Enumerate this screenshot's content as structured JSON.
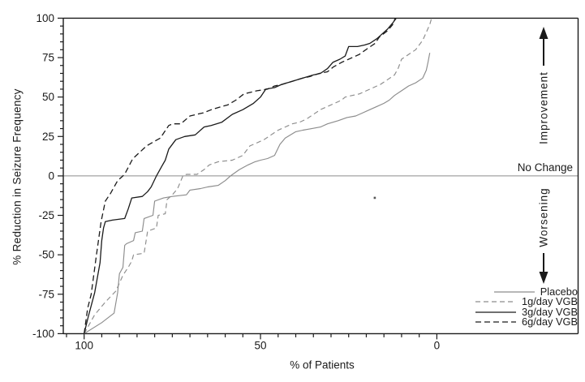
{
  "annotations": {
    "improvement": "Improvement",
    "no_change": "No Change",
    "worsening": "Worsening"
  },
  "legend": {
    "items": [
      {
        "label": "Placebo",
        "color": "#8c8c8c",
        "style": "solid",
        "dash": null
      },
      {
        "label": "1g/day VGB",
        "color": "#8c8c8c",
        "style": "dashed",
        "dash": "6 4"
      },
      {
        "label": "3g/day VGB",
        "color": "#1a1a1a",
        "style": "solid",
        "dash": null
      },
      {
        "label": "6g/day VGB",
        "color": "#1a1a1a",
        "style": "dashed",
        "dash": "7 4"
      }
    ]
  },
  "chart_data": {
    "type": "line",
    "title": "",
    "xlabel": "% of Patients",
    "ylabel": "% Reduction in Seizure Frequency",
    "x_axis": {
      "min": 0,
      "max": 100,
      "reversed": true,
      "major_ticks": [
        100,
        50,
        0
      ],
      "minor_step": 5,
      "minor_start": 105
    },
    "y_axis": {
      "min": -100,
      "max": 100,
      "major_ticks": [
        100,
        75,
        50,
        25,
        0,
        -25,
        -50,
        -75,
        -100
      ],
      "minor_step": 5
    },
    "reference_line": {
      "y": 0,
      "label": "No Change",
      "color": "#8c8c8c"
    },
    "grid": false,
    "legend_position": "bottom-right-inside",
    "frame_color": "#1a1a1a",
    "stray_point": {
      "x": 17.6,
      "y": -13.9,
      "color": "#555555"
    },
    "series": [
      {
        "name": "Placebo",
        "color": "#8c8c8c",
        "style": "solid",
        "dash": null,
        "width": 1.15,
        "points": [
          [
            100,
            -100
          ],
          [
            95,
            -93
          ],
          [
            91.5,
            -87
          ],
          [
            90.5,
            -74
          ],
          [
            90,
            -62
          ],
          [
            89,
            -58
          ],
          [
            88.5,
            -44
          ],
          [
            88,
            -43
          ],
          [
            86,
            -41
          ],
          [
            85.5,
            -36
          ],
          [
            83.5,
            -35
          ],
          [
            83,
            -27
          ],
          [
            80.5,
            -25
          ],
          [
            80,
            -16
          ],
          [
            77.5,
            -14
          ],
          [
            75,
            -13
          ],
          [
            71,
            -12
          ],
          [
            70,
            -9
          ],
          [
            67,
            -8
          ],
          [
            65,
            -7
          ],
          [
            62,
            -6
          ],
          [
            60,
            -3
          ],
          [
            58.5,
            0
          ],
          [
            56,
            4
          ],
          [
            53.5,
            7
          ],
          [
            51.5,
            9
          ],
          [
            50,
            10
          ],
          [
            48,
            11
          ],
          [
            46,
            13
          ],
          [
            44.5,
            20
          ],
          [
            43,
            24
          ],
          [
            40,
            28
          ],
          [
            38,
            29
          ],
          [
            35.5,
            30
          ],
          [
            33,
            31
          ],
          [
            31,
            33
          ],
          [
            28,
            35
          ],
          [
            25.5,
            37
          ],
          [
            23,
            38
          ],
          [
            21,
            40
          ],
          [
            19,
            42
          ],
          [
            17,
            44
          ],
          [
            15,
            46
          ],
          [
            13.5,
            48
          ],
          [
            12,
            51
          ],
          [
            10,
            54
          ],
          [
            8,
            57
          ],
          [
            6,
            59
          ],
          [
            4,
            62
          ],
          [
            3,
            67
          ],
          [
            2.5,
            72
          ],
          [
            2,
            78
          ]
        ]
      },
      {
        "name": "1g/day VGB",
        "color": "#8c8c8c",
        "style": "dashed",
        "dash": "6 4",
        "width": 1.15,
        "points": [
          [
            100,
            -100
          ],
          [
            97,
            -88
          ],
          [
            94,
            -80
          ],
          [
            91,
            -73
          ],
          [
            89,
            -63
          ],
          [
            87.5,
            -58
          ],
          [
            86.5,
            -54
          ],
          [
            86,
            -50
          ],
          [
            83,
            -49
          ],
          [
            82.5,
            -42
          ],
          [
            82,
            -35
          ],
          [
            79.5,
            -33
          ],
          [
            79,
            -25
          ],
          [
            77,
            -24
          ],
          [
            76.5,
            -15
          ],
          [
            75,
            -12
          ],
          [
            73.5,
            -8
          ],
          [
            72,
            0
          ],
          [
            71,
            1
          ],
          [
            68,
            1
          ],
          [
            66,
            4
          ],
          [
            64.5,
            7
          ],
          [
            62,
            9
          ],
          [
            58,
            10
          ],
          [
            55,
            13
          ],
          [
            53,
            19
          ],
          [
            51,
            21
          ],
          [
            49,
            23
          ],
          [
            47,
            26
          ],
          [
            45,
            29
          ],
          [
            43,
            31
          ],
          [
            41,
            33
          ],
          [
            39,
            34
          ],
          [
            37,
            36
          ],
          [
            35,
            39
          ],
          [
            33,
            42
          ],
          [
            31,
            44
          ],
          [
            29,
            46
          ],
          [
            27,
            48
          ],
          [
            26,
            50
          ],
          [
            24,
            51
          ],
          [
            22,
            52
          ],
          [
            20,
            54
          ],
          [
            18,
            56
          ],
          [
            16,
            58
          ],
          [
            14,
            61
          ],
          [
            12,
            64
          ],
          [
            11,
            68
          ],
          [
            10,
            74
          ],
          [
            8,
            77
          ],
          [
            6,
            80
          ],
          [
            4,
            86
          ],
          [
            3,
            91
          ],
          [
            2,
            96
          ],
          [
            1.5,
            100
          ]
        ]
      },
      {
        "name": "3g/day VGB",
        "color": "#1a1a1a",
        "style": "solid",
        "dash": null,
        "width": 1.3,
        "points": [
          [
            100,
            -100
          ],
          [
            98.8,
            -89
          ],
          [
            97,
            -74
          ],
          [
            95.5,
            -55
          ],
          [
            95,
            -41
          ],
          [
            94.5,
            -33
          ],
          [
            94,
            -29
          ],
          [
            92,
            -28
          ],
          [
            88.5,
            -27
          ],
          [
            87.5,
            -21
          ],
          [
            86.5,
            -14
          ],
          [
            83.5,
            -13
          ],
          [
            82,
            -10
          ],
          [
            81,
            -7
          ],
          [
            79.5,
            0
          ],
          [
            78,
            6
          ],
          [
            77,
            10
          ],
          [
            76,
            17
          ],
          [
            74,
            23
          ],
          [
            71.5,
            25
          ],
          [
            68.5,
            26
          ],
          [
            66,
            31
          ],
          [
            64,
            32
          ],
          [
            61,
            34
          ],
          [
            58,
            39
          ],
          [
            55,
            42
          ],
          [
            52,
            46
          ],
          [
            50,
            50
          ],
          [
            48.5,
            55
          ],
          [
            46,
            56
          ],
          [
            44,
            58
          ],
          [
            41,
            60
          ],
          [
            38,
            62
          ],
          [
            35,
            64
          ],
          [
            33,
            65
          ],
          [
            31,
            68
          ],
          [
            29.5,
            72
          ],
          [
            27.5,
            74
          ],
          [
            26,
            76
          ],
          [
            25,
            82
          ],
          [
            22.5,
            82
          ],
          [
            20.5,
            83
          ],
          [
            19,
            84
          ],
          [
            17,
            87
          ],
          [
            16,
            89
          ],
          [
            14,
            93
          ],
          [
            12.5,
            97
          ],
          [
            11.5,
            100
          ]
        ]
      },
      {
        "name": "6g/day VGB",
        "color": "#1a1a1a",
        "style": "dashed",
        "dash": "7 4",
        "width": 1.3,
        "points": [
          [
            100,
            -100
          ],
          [
            99,
            -84
          ],
          [
            98,
            -75
          ],
          [
            96.5,
            -50
          ],
          [
            95.2,
            -29
          ],
          [
            94,
            -16
          ],
          [
            92.5,
            -11
          ],
          [
            90.5,
            -3
          ],
          [
            89,
            0
          ],
          [
            88.3,
            2
          ],
          [
            86.2,
            11
          ],
          [
            85.7,
            12
          ],
          [
            82.3,
            19
          ],
          [
            80,
            22
          ],
          [
            78.4,
            24
          ],
          [
            76,
            32
          ],
          [
            74.9,
            33
          ],
          [
            72.6,
            33
          ],
          [
            70,
            38
          ],
          [
            66.2,
            40
          ],
          [
            63.9,
            42
          ],
          [
            61,
            44
          ],
          [
            59.3,
            45
          ],
          [
            57,
            48
          ],
          [
            54.7,
            52
          ],
          [
            51,
            54
          ],
          [
            48,
            55
          ],
          [
            46,
            57
          ],
          [
            43.9,
            58
          ],
          [
            41,
            60
          ],
          [
            38,
            62
          ],
          [
            36,
            63
          ],
          [
            33.3,
            65
          ],
          [
            31,
            66
          ],
          [
            29.4,
            69
          ],
          [
            27,
            72
          ],
          [
            25,
            74
          ],
          [
            22,
            77
          ],
          [
            19.5,
            81
          ],
          [
            17.5,
            84
          ],
          [
            16.3,
            88
          ],
          [
            14,
            92
          ],
          [
            12.5,
            96
          ],
          [
            11.8,
            100
          ]
        ]
      }
    ]
  }
}
